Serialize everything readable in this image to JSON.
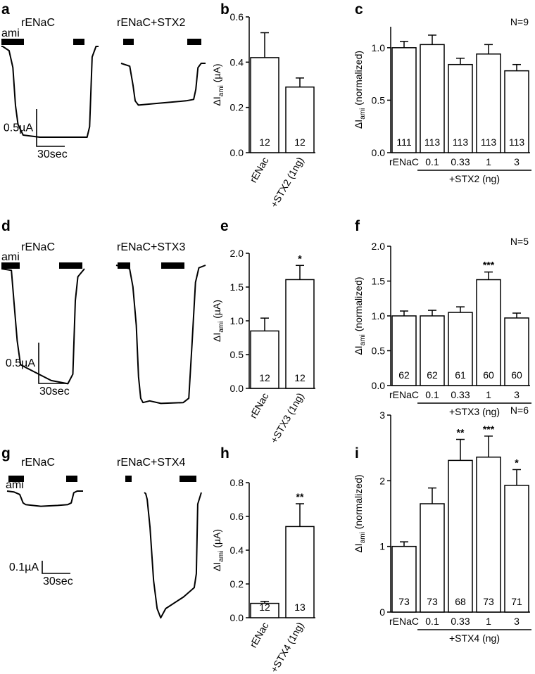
{
  "panels": [
    {
      "id": "a",
      "label": "a",
      "type": "traces",
      "traces": [
        {
          "title": "rENaC",
          "amiLabel": "ami",
          "points": [
            [
              0,
              0.0
            ],
            [
              1,
              0.0
            ],
            [
              6,
              -0.02
            ],
            [
              9,
              -0.1
            ],
            [
              11,
              -0.28
            ],
            [
              13,
              -0.37
            ],
            [
              17,
              -0.42
            ],
            [
              30,
              -0.43
            ],
            [
              60,
              -0.43
            ],
            [
              67,
              -0.43
            ],
            [
              69,
              -0.38
            ],
            [
              71,
              -0.05
            ],
            [
              74,
              0.0
            ],
            [
              76,
              0.0
            ]
          ]
        },
        {
          "title": "rENaC+STX2",
          "points": [
            [
              0,
              0.0
            ],
            [
              8,
              -0.02
            ],
            [
              11,
              -0.15
            ],
            [
              13,
              -0.26
            ],
            [
              16,
              -0.29
            ],
            [
              30,
              -0.28
            ],
            [
              60,
              -0.26
            ],
            [
              67,
              -0.25
            ],
            [
              69,
              -0.18
            ],
            [
              71,
              -0.03
            ],
            [
              74,
              0.0
            ],
            [
              78,
              0.0
            ]
          ]
        }
      ],
      "scale": {
        "y": "0.5µA",
        "x": "30sec"
      }
    },
    {
      "id": "d",
      "label": "d",
      "type": "traces",
      "traces": [
        {
          "title": "rENaC",
          "amiLabel": "ami",
          "points": [
            [
              0,
              0.0
            ],
            [
              12,
              -0.01
            ],
            [
              15,
              -0.2
            ],
            [
              19,
              -0.45
            ],
            [
              23,
              -0.6
            ],
            [
              30,
              -0.62
            ],
            [
              60,
              -0.7
            ],
            [
              80,
              -0.72
            ],
            [
              86,
              -0.66
            ],
            [
              89,
              -0.2
            ],
            [
              92,
              -0.05
            ],
            [
              100,
              0.0
            ]
          ]
        },
        {
          "title": "rENaC+STX3",
          "points": [
            [
              0,
              0.0
            ],
            [
              12,
              -0.04
            ],
            [
              15,
              -0.25
            ],
            [
              18,
              -0.7
            ],
            [
              20,
              -1.3
            ],
            [
              22,
              -1.55
            ],
            [
              24,
              -1.6
            ],
            [
              30,
              -1.58
            ],
            [
              40,
              -1.61
            ],
            [
              60,
              -1.6
            ],
            [
              65,
              -1.55
            ],
            [
              68,
              -0.9
            ],
            [
              71,
              -0.2
            ],
            [
              74,
              -0.03
            ],
            [
              80,
              0.0
            ]
          ]
        }
      ],
      "scale": {
        "y": "0.5µA",
        "x": "30sec"
      }
    },
    {
      "id": "g",
      "label": "g",
      "type": "traces",
      "traces": [
        {
          "title": "rENaC",
          "amiLabel": "ami",
          "points": [
            [
              0,
              0.0
            ],
            [
              8,
              -0.005
            ],
            [
              15,
              -0.02
            ],
            [
              19,
              -0.07
            ],
            [
              22,
              -0.08
            ],
            [
              40,
              -0.09
            ],
            [
              60,
              -0.085
            ],
            [
              72,
              -0.08
            ],
            [
              76,
              -0.07
            ],
            [
              79,
              -0.01
            ],
            [
              83,
              0.0
            ],
            [
              90,
              0.0
            ]
          ]
        },
        {
          "title": "rENaC+STX4",
          "points": [
            [
              0,
              0.0
            ],
            [
              2,
              -0.005
            ],
            [
              4,
              -0.03
            ],
            [
              8,
              -0.15
            ],
            [
              13,
              -0.38
            ],
            [
              18,
              -0.5
            ],
            [
              23,
              -0.54
            ],
            [
              30,
              -0.5
            ],
            [
              55,
              -0.45
            ],
            [
              70,
              -0.41
            ],
            [
              73,
              -0.35
            ],
            [
              75,
              -0.05
            ],
            [
              80,
              0.0
            ]
          ]
        }
      ],
      "scale": {
        "y": "0.1µA",
        "x": "30sec"
      }
    }
  ],
  "chart_data": [
    {
      "id": "b",
      "label": "b",
      "type": "bar",
      "categories": [
        "rENac",
        "+STX2 (1ng)"
      ],
      "values": [
        0.42,
        0.29
      ],
      "errors": [
        0.11,
        0.04
      ],
      "n": [
        "12",
        "12"
      ],
      "stars": [
        "",
        ""
      ],
      "ylabel": "ΔI",
      "ylabel_sub": "ami",
      "ylabel_unit": " (µA)",
      "ylim": [
        0,
        0.6
      ],
      "yticks": [
        "0.0",
        "0.2",
        "0.4",
        "0.6"
      ]
    },
    {
      "id": "c",
      "label": "c",
      "type": "bar",
      "categories": [
        "rENaC",
        "0.1",
        "0.33",
        "1",
        "3"
      ],
      "values": [
        1.0,
        1.03,
        0.84,
        0.94,
        0.78
      ],
      "errors": [
        0.06,
        0.09,
        0.06,
        0.09,
        0.06
      ],
      "n": [
        "111",
        "113",
        "113",
        "113",
        "113"
      ],
      "stars": [
        "",
        "",
        "",
        "",
        ""
      ],
      "ylabel": "ΔI",
      "ylabel_sub": "ami",
      "ylabel_unit": " (normalized)",
      "ylim": [
        0,
        1.2
      ],
      "yticks": [
        "0.0",
        "0.5",
        "1.0"
      ],
      "group_label": "+STX2 (ng)",
      "annotation": "N=9"
    },
    {
      "id": "e",
      "label": "e",
      "type": "bar",
      "categories": [
        "rENac",
        "+STX3 (1ng)"
      ],
      "values": [
        0.85,
        1.61
      ],
      "errors": [
        0.19,
        0.21
      ],
      "n": [
        "12",
        "12"
      ],
      "stars": [
        "",
        "*"
      ],
      "ylabel": "ΔI",
      "ylabel_sub": "ami",
      "ylabel_unit": " (µA)",
      "ylim": [
        0,
        2.0
      ],
      "yticks": [
        "0.0",
        "0.5",
        "1.0",
        "1.5",
        "2.0"
      ]
    },
    {
      "id": "f",
      "label": "f",
      "type": "bar",
      "categories": [
        "rENaC",
        "0.1",
        "0.33",
        "1",
        "3"
      ],
      "values": [
        1.0,
        1.0,
        1.05,
        1.52,
        0.97
      ],
      "errors": [
        0.07,
        0.08,
        0.08,
        0.11,
        0.07
      ],
      "n": [
        "62",
        "62",
        "61",
        "60",
        "60"
      ],
      "stars": [
        "",
        "",
        "",
        "***",
        ""
      ],
      "ylabel": "ΔI",
      "ylabel_sub": "ami",
      "ylabel_unit": " (normalized)",
      "ylim": [
        0,
        2.0
      ],
      "yticks": [
        "0.0",
        "0.5",
        "1.0",
        "1.5",
        "2.0"
      ],
      "group_label": "+STX3 (ng)",
      "annotation": "N=5"
    },
    {
      "id": "h",
      "label": "h",
      "type": "bar",
      "categories": [
        "rENac",
        "+STX4 (1ng)"
      ],
      "values": [
        0.085,
        0.54
      ],
      "errors": [
        0.012,
        0.135
      ],
      "n": [
        "12",
        "13"
      ],
      "stars": [
        "",
        "**"
      ],
      "ylabel": "ΔI",
      "ylabel_sub": "ami",
      "ylabel_unit": " (µA)",
      "ylim": [
        0,
        0.8
      ],
      "yticks": [
        "0.0",
        "0.2",
        "0.4",
        "0.6",
        "0.8"
      ]
    },
    {
      "id": "i",
      "label": "i",
      "type": "bar",
      "categories": [
        "rENaC",
        "0.1",
        "0.33",
        "1",
        "3"
      ],
      "values": [
        1.0,
        1.65,
        2.31,
        2.36,
        1.93
      ],
      "errors": [
        0.07,
        0.24,
        0.32,
        0.32,
        0.24
      ],
      "n": [
        "73",
        "73",
        "68",
        "73",
        "71"
      ],
      "stars": [
        "",
        "",
        "**",
        "***",
        "*"
      ],
      "ylabel": "ΔI",
      "ylabel_sub": "ami",
      "ylabel_unit": " (normalized)",
      "ylim": [
        0,
        3
      ],
      "yticks": [
        "0",
        "1",
        "2",
        "3"
      ],
      "group_label": "+STX4 (ng)",
      "annotation": "N=6"
    }
  ]
}
